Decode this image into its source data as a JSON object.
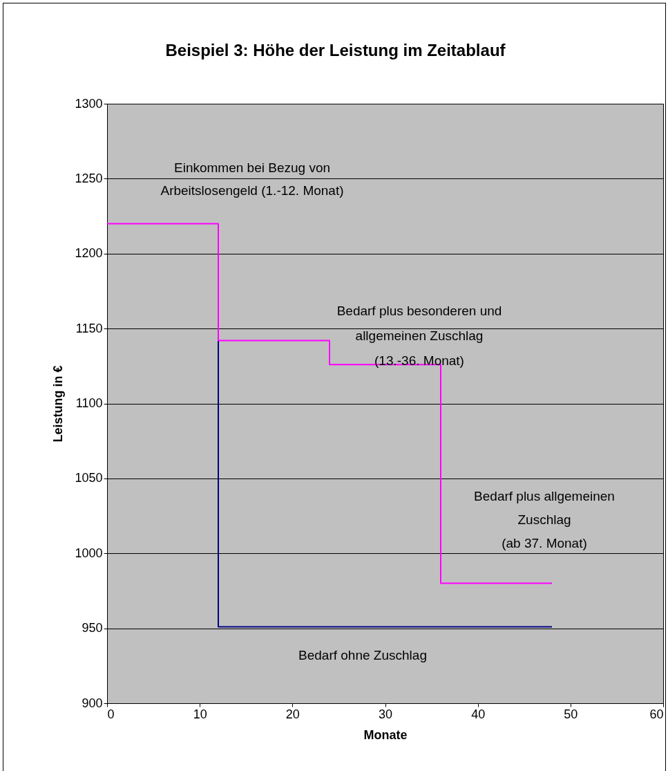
{
  "chart_data": {
    "type": "line",
    "title": "Beispiel 3: Höhe der Leistung im Zeitablauf",
    "xlabel": "Monate",
    "ylabel": "Leistung in €",
    "series": [
      {
        "color": "#000080",
        "x": [
          12,
          12,
          48
        ],
        "values": [
          1142,
          951,
          951
        ]
      },
      {
        "color": "#ff00ff",
        "x": [
          0,
          12,
          12,
          24,
          24,
          36,
          36,
          48
        ],
        "values": [
          1220,
          1220,
          1142,
          1142,
          1126,
          1126,
          980,
          980
        ]
      }
    ],
    "xlim": [
      0,
      60
    ],
    "xticks": [
      0,
      10,
      20,
      30,
      40,
      50,
      60
    ],
    "ylim": [
      900,
      1300
    ],
    "yticks": [
      900,
      950,
      1000,
      1050,
      1100,
      1150,
      1200,
      1250,
      1300
    ],
    "grid": "y",
    "legend": false,
    "marker": "none",
    "line_style": "solid",
    "annotations": [
      "Einkommen bei Bezug von\nArbeitslosengeld (1.-12. Monat)",
      "Bedarf plus besonderen und\nallgemeinen Zuschlag\n(13.-36. Monat)",
      "Bedarf plus allgemeinen\nZuschlag\n(ab 37. Monat)",
      "Bedarf ohne Zuschlag"
    ]
  }
}
